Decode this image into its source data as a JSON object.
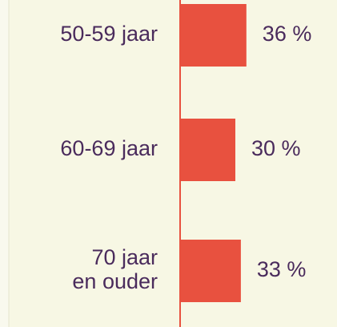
{
  "chart_data": {
    "type": "hbar",
    "categories": [
      "50-59 jaar",
      "60-69 jaar",
      "70 jaar\nen ouder"
    ],
    "values": [
      36,
      30,
      33
    ],
    "value_labels": [
      "36 %",
      "30 %",
      "33 %"
    ],
    "color": "#e8513f"
  }
}
